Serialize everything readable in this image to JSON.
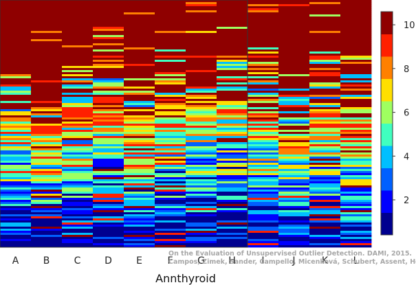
{
  "chart_data": {
    "type": "heatmap",
    "xlabel": "Annthyroid",
    "categories": [
      "A",
      "B",
      "C",
      "D",
      "E",
      "F",
      "G",
      "H",
      "I",
      "J",
      "K",
      "L"
    ],
    "colorbar": {
      "min": 0.4,
      "max": 10.6,
      "ticks": [
        "2",
        "4",
        "6",
        "8",
        "10"
      ],
      "tick_values": [
        2,
        4,
        6,
        8,
        10
      ],
      "colors": [
        "#00008f",
        "#0000ff",
        "#0060ff",
        "#00bfff",
        "#40ffbf",
        "#9fff60",
        "#ffdf00",
        "#ff8000",
        "#ff2000",
        "#8f0000"
      ]
    },
    "column_profiles": [
      {
        "stripe_top": 0.3,
        "floor": 0.45,
        "dark_base": 0.08
      },
      {
        "stripe_top": 0.38,
        "floor": 0.5,
        "dark_base": 0.05
      },
      {
        "stripe_top": 0.25,
        "floor": 0.42,
        "dark_base": 0.04
      },
      {
        "stripe_top": 0.1,
        "floor": 0.35,
        "dark_base": 0.04
      },
      {
        "stripe_top": 0.35,
        "floor": 0.5,
        "dark_base": 0.0
      },
      {
        "stripe_top": 0.2,
        "floor": 0.4,
        "dark_base": 0.08
      },
      {
        "stripe_top": 0.33,
        "floor": 0.4,
        "dark_base": 0.05
      },
      {
        "stripe_top": 0.22,
        "floor": 0.4,
        "dark_base": 0.12
      },
      {
        "stripe_top": 0.18,
        "floor": 0.45,
        "dark_base": 0.06
      },
      {
        "stripe_top": 0.28,
        "floor": 0.52,
        "dark_base": 0.06
      },
      {
        "stripe_top": 0.2,
        "floor": 0.45,
        "dark_base": 0.05
      },
      {
        "stripe_top": 0.22,
        "floor": 0.45,
        "dark_base": 0.05
      }
    ]
  },
  "watermark": {
    "line1": "On the Evaluation of Unsupervised Outlier Detection. DAMI, 2015.",
    "line2": "Campos, Zimek, Sander, Campello, Micenková, Schubert, Assent, Houle"
  }
}
